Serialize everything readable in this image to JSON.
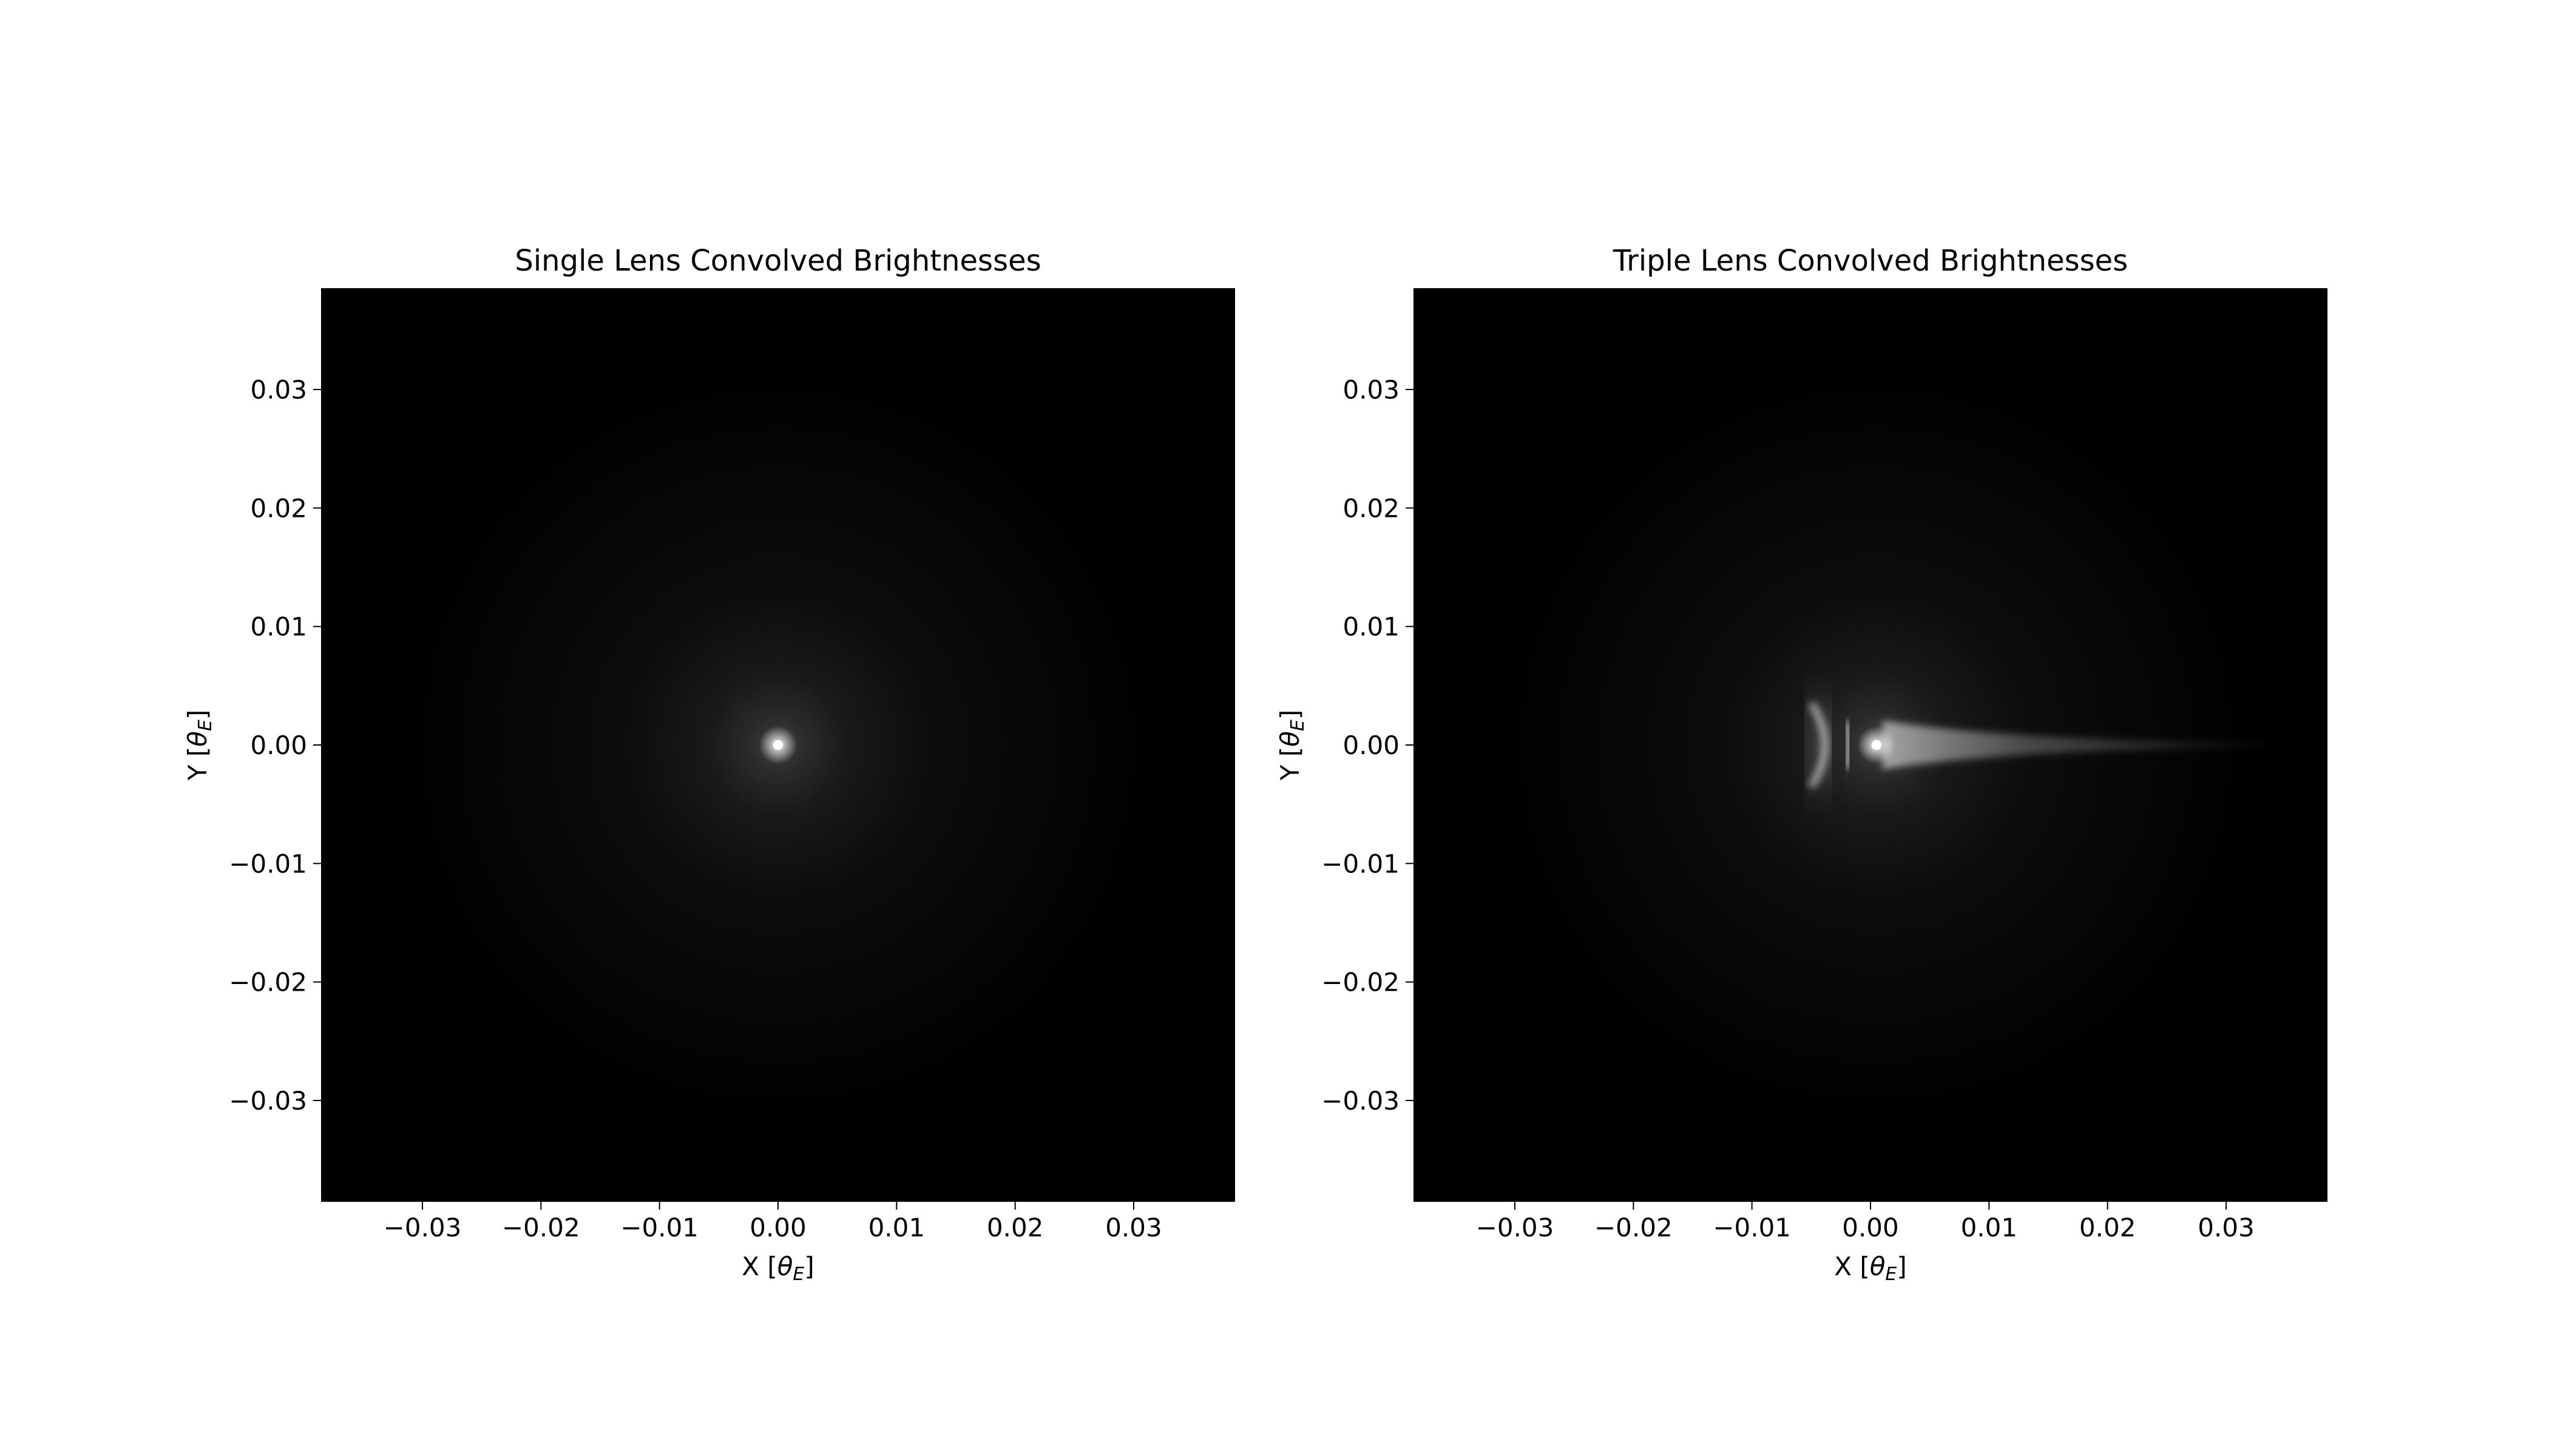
{
  "figure": {
    "background": "#ffffff",
    "colormap": "gray"
  },
  "chart_data": [
    {
      "type": "heatmap",
      "title": "Single Lens Convolved Brightnesses",
      "xlabel_prefix": "X [",
      "xlabel_symbol": "θ",
      "xlabel_sub": "E",
      "xlabel_suffix": "]",
      "ylabel_prefix": "Y [",
      "ylabel_symbol": "θ",
      "ylabel_sub": "E",
      "ylabel_suffix": "]",
      "xlim": [
        -0.0385,
        0.0385
      ],
      "ylim": [
        -0.0385,
        0.0385
      ],
      "xticks": [
        -0.03,
        -0.02,
        -0.01,
        0.0,
        0.01,
        0.02,
        0.03
      ],
      "xtick_labels": [
        "−0.03",
        "−0.02",
        "−0.01",
        "0.00",
        "0.01",
        "0.02",
        "0.03"
      ],
      "yticks": [
        0.03,
        0.02,
        0.01,
        0.0,
        -0.01,
        -0.02,
        -0.03
      ],
      "ytick_labels": [
        "0.03",
        "0.02",
        "0.01",
        "0.00",
        "−0.01",
        "−0.02",
        "−0.03"
      ],
      "grid": false,
      "brightness_features": [
        {
          "kind": "point-source",
          "x": 0.0,
          "y": 0.0
        }
      ]
    },
    {
      "type": "heatmap",
      "title": "Triple Lens Convolved Brightnesses",
      "xlabel_prefix": "X [",
      "xlabel_symbol": "θ",
      "xlabel_sub": "E",
      "xlabel_suffix": "]",
      "ylabel_prefix": "Y [",
      "ylabel_symbol": "θ",
      "ylabel_sub": "E",
      "ylabel_suffix": "]",
      "xlim": [
        -0.0385,
        0.0385
      ],
      "ylim": [
        -0.0385,
        0.0385
      ],
      "xticks": [
        -0.03,
        -0.02,
        -0.01,
        0.0,
        0.01,
        0.02,
        0.03
      ],
      "xtick_labels": [
        "−0.03",
        "−0.02",
        "−0.01",
        "0.00",
        "0.01",
        "0.02",
        "0.03"
      ],
      "yticks": [
        0.03,
        0.02,
        0.01,
        0.0,
        -0.01,
        -0.02,
        -0.03
      ],
      "ytick_labels": [
        "0.03",
        "0.02",
        "0.01",
        "0.00",
        "−0.01",
        "−0.02",
        "−0.03"
      ],
      "grid": false,
      "brightness_features": [
        {
          "kind": "point-source",
          "x": 0.0005,
          "y": 0.0
        },
        {
          "kind": "arc",
          "x_vertex": -0.0005,
          "x_tips": -0.005,
          "y_tips": [
            0.0035,
            -0.0035
          ]
        },
        {
          "kind": "tail",
          "x_start": 0.001,
          "x_end": 0.035,
          "y": 0.0
        }
      ]
    }
  ]
}
